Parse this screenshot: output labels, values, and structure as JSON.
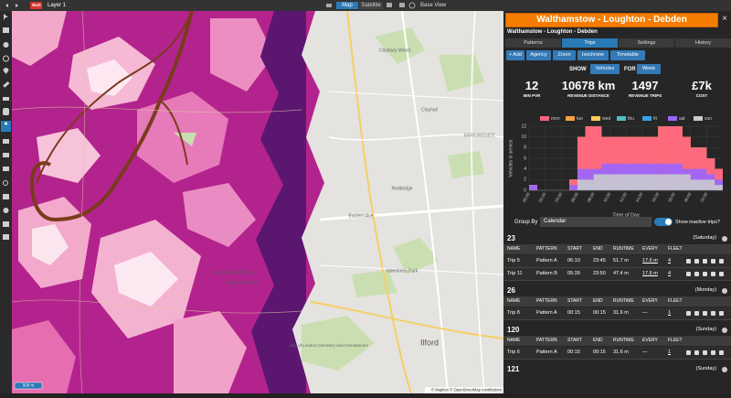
{
  "toolbar": {
    "badge": "BUS",
    "layer": "Layer 1",
    "map_modes": [
      "Map",
      "Satellite"
    ],
    "base_view": "Base View"
  },
  "map": {
    "labels": [
      "Claybury Wood",
      "Clayhall",
      "BARKINGSIDE",
      "Redbridge",
      "Eastern Ave",
      "Wanstead Golf Club",
      "Wanstead Park",
      "Valentines Park",
      "City of London Cemetery and Crematorium",
      "Ilford"
    ],
    "scale": "500 m",
    "attribution": "© Mapbox © OpenStreetMap contributors"
  },
  "panel": {
    "title": "Walthamstow - Loughton - Debden",
    "close": "×",
    "subtitle": "Walthamstow - Loughton - Debden",
    "tabs": [
      "Patterns",
      "Trips",
      "Settings",
      "History"
    ],
    "actions": [
      "+ Add",
      "Agency",
      "Zoom",
      "Isochrone",
      "Timetable"
    ],
    "show_label": "SHOW",
    "show_value": "Vehicles",
    "for_label": "FOR",
    "for_value": "Week",
    "stats": [
      {
        "value": "12",
        "label": "MIN PVR"
      },
      {
        "value": "10678 km",
        "label": "REVENUE DISTANCE"
      },
      {
        "value": "1497",
        "label": "REVENUE TRIPS"
      },
      {
        "value": "£7k",
        "label": "COST"
      }
    ],
    "group_by_label": "Group By",
    "group_by_value": "Calendar",
    "toggle_label": "Show inactive trips?",
    "columns": [
      "NAME",
      "PATTERN",
      "START",
      "END",
      "RUNTIME",
      "EVERY",
      "FLEET"
    ],
    "groups": [
      {
        "id": "23",
        "day": "(Saturday)",
        "trips": [
          [
            "Trip 5",
            "Pattern A",
            "06:10",
            "23:45",
            "51.7 m",
            "17.6 m",
            "4"
          ],
          [
            "Trip 11",
            "Pattern B",
            "05:39",
            "23:50",
            "47.4 m",
            "17.6 m",
            "4"
          ]
        ]
      },
      {
        "id": "26",
        "day": "(Monday)",
        "trips": [
          [
            "Trip 8",
            "Pattern A",
            "00:15",
            "00:15",
            "31.6 m",
            "—",
            "1"
          ]
        ]
      },
      {
        "id": "120",
        "day": "(Sunday)",
        "trips": [
          [
            "Trip 6",
            "Pattern A",
            "00:15",
            "00:15",
            "31.6 m",
            "—",
            "1"
          ]
        ]
      },
      {
        "id": "121",
        "day": "(Sunday)",
        "trips": []
      }
    ]
  },
  "chart": {
    "type": "step",
    "ylabel": "Vehicles in service",
    "xlabel": "Time of Day",
    "x": [
      0,
      1,
      2,
      3,
      4,
      5,
      6,
      7,
      8,
      9,
      10,
      11,
      12,
      13,
      14,
      15,
      16,
      17,
      18,
      19,
      20,
      21,
      22,
      23
    ],
    "xlim": [
      0,
      24
    ],
    "xticks": [
      {
        "value": 0,
        "label": "00:00"
      },
      {
        "value": 2,
        "label": "02:00"
      },
      {
        "value": 4,
        "label": "04:00"
      },
      {
        "value": 6,
        "label": "06:00"
      },
      {
        "value": 8,
        "label": "08:00"
      },
      {
        "value": 10,
        "label": "10:00"
      },
      {
        "value": 12,
        "label": "12:00"
      },
      {
        "value": 14,
        "label": "14:00"
      },
      {
        "value": 16,
        "label": "16:00"
      },
      {
        "value": 18,
        "label": "18:00"
      },
      {
        "value": 20,
        "label": "20:00"
      },
      {
        "value": 22,
        "label": "22:00"
      }
    ],
    "ylim": [
      0,
      12
    ],
    "yticks": [
      0,
      2,
      4,
      6,
      8,
      10,
      12
    ],
    "grid": true,
    "series": [
      {
        "name": "mon",
        "color": "#ff6384",
        "values": [
          1,
          0,
          0,
          0,
          0,
          2,
          10,
          12,
          12,
          10,
          10,
          10,
          10,
          10,
          10,
          10,
          12,
          12,
          12,
          10,
          8,
          8,
          6,
          4
        ]
      },
      {
        "name": "tue",
        "color": "#ff9f40",
        "values": [
          1,
          0,
          0,
          0,
          0,
          2,
          10,
          12,
          12,
          10,
          10,
          10,
          10,
          10,
          10,
          10,
          12,
          12,
          12,
          10,
          8,
          8,
          6,
          4
        ]
      },
      {
        "name": "wed",
        "color": "#ffcd56",
        "values": [
          1,
          0,
          0,
          0,
          0,
          2,
          10,
          12,
          12,
          10,
          10,
          10,
          10,
          10,
          10,
          10,
          12,
          12,
          12,
          10,
          8,
          8,
          6,
          4
        ]
      },
      {
        "name": "thu",
        "color": "#4bc0c0",
        "values": [
          1,
          0,
          0,
          0,
          0,
          2,
          10,
          12,
          12,
          10,
          10,
          10,
          10,
          10,
          10,
          10,
          12,
          12,
          12,
          10,
          8,
          8,
          6,
          4
        ]
      },
      {
        "name": "fri",
        "color": "#36a2eb",
        "values": [
          1,
          0,
          0,
          0,
          0,
          2,
          10,
          12,
          12,
          10,
          10,
          10,
          10,
          10,
          10,
          10,
          12,
          12,
          12,
          10,
          8,
          8,
          6,
          4
        ]
      },
      {
        "name": "sat",
        "color": "#9966ff",
        "values": [
          1,
          0,
          0,
          0,
          0,
          1,
          4,
          4,
          4,
          5,
          5,
          5,
          5,
          5,
          5,
          5,
          5,
          5,
          5,
          4,
          4,
          4,
          3,
          2
        ]
      },
      {
        "name": "sun",
        "color": "#c9cbcf",
        "values": [
          0,
          0,
          0,
          0,
          0,
          0,
          2,
          2,
          3,
          3,
          3,
          3,
          3,
          3,
          3,
          3,
          3,
          3,
          3,
          3,
          2,
          2,
          2,
          1
        ]
      }
    ]
  }
}
